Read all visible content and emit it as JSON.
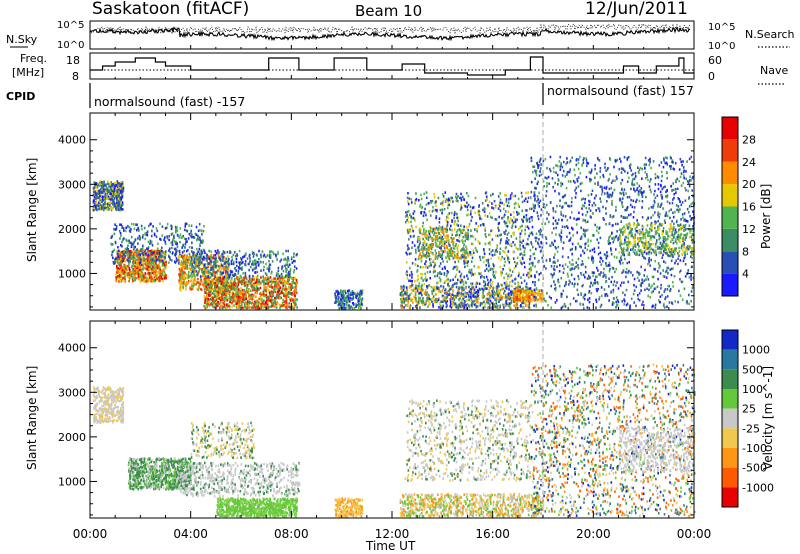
{
  "header": {
    "station": "Saskatoon (fitACF)",
    "beam": "Beam 10",
    "date": "12/Jun/2011"
  },
  "top_panels": {
    "nsky_label": "N.Sky",
    "nsky_ticks": [
      "10^5",
      "10^0"
    ],
    "nsearch_label": "N.Search",
    "freq_label_1": "Freq.",
    "freq_label_2": "[MHz]",
    "freq_ticks": [
      "18",
      "8"
    ],
    "nave_label": "Nave",
    "nave_ticks": [
      "60",
      "0"
    ],
    "cpid_label": "CPID",
    "cpid_segments": [
      {
        "text": "normalsound (fast) -157",
        "start_hour": 0
      },
      {
        "text": "normalsound (fast) 157",
        "start_hour": 18
      }
    ]
  },
  "chart_data": [
    {
      "type": "heatmap",
      "ylabel": "Slant Range [km]",
      "y_ticks": [
        1000,
        2000,
        3000,
        4000
      ],
      "ylim": [
        180,
        4600
      ],
      "xlim": [
        0,
        24
      ],
      "colorbar": {
        "label": "Power [dB]",
        "ticks": [
          "4",
          "8",
          "12",
          "16",
          "20",
          "24",
          "28"
        ],
        "colors": [
          "#1a1aff",
          "#2850b4",
          "#3c8c64",
          "#50b450",
          "#e6c800",
          "#ff8c00",
          "#f03c0a",
          "#e60000"
        ]
      }
    },
    {
      "type": "heatmap",
      "ylabel": "Slant Range [km]",
      "y_ticks": [
        1000,
        2000,
        3000,
        4000
      ],
      "ylim": [
        180,
        4600
      ],
      "xlim": [
        0,
        24
      ],
      "colorbar": {
        "label": "Velocity [m s^-1]",
        "ticks": [
          "1000",
          "500",
          "100",
          "25",
          "-25",
          "-100",
          "-500",
          "-1000"
        ],
        "colors": [
          "#1428c8",
          "#2878a0",
          "#3c8c50",
          "#64c83c",
          "#c8c8c8",
          "#f0c850",
          "#ff9614",
          "#ff5a00",
          "#e60000"
        ]
      }
    }
  ],
  "time_axis": {
    "label": "Time UT",
    "ticks": [
      "00:00",
      "04:00",
      "08:00",
      "12:00",
      "16:00",
      "20:00",
      "00:00"
    ]
  }
}
